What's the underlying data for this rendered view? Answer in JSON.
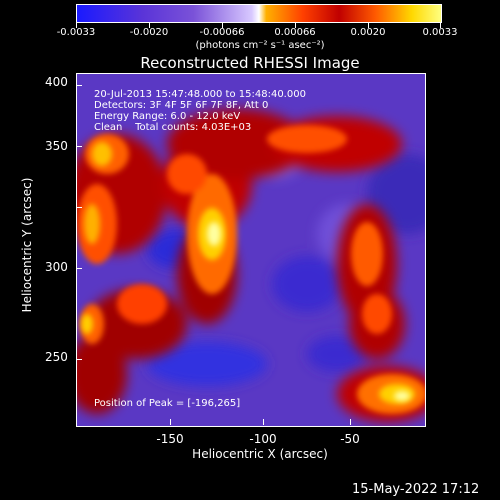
{
  "colorbar": {
    "ticks": [
      "-0.0033",
      "-0.0020",
      "-0.00066",
      "0.00066",
      "0.0020",
      "0.0033"
    ],
    "unit": "(photons cm⁻² s⁻¹ asec⁻²)"
  },
  "title": "Reconstructed RHESSI Image",
  "info": {
    "time": "20-Jul-2013 15:47:48.000 to 15:48:40.000",
    "detectors": "Detectors: 3F 4F 5F 6F 7F 8F, Att 0",
    "energy": "Energy Range: 6.0 - 12.0 keV",
    "clean": "Clean    Total counts: 4.03E+03",
    "peak": "Position of Peak = [-196,265]"
  },
  "axes": {
    "xlabel": "Heliocentric X (arcsec)",
    "ylabel": "Heliocentric Y (arcsec)",
    "xticks": [
      "-150",
      "-100",
      "-50"
    ],
    "yticks": [
      "400",
      "350",
      "300",
      "250"
    ]
  },
  "timestamp": "15-May-2022 17:12",
  "colors": {
    "background": "#000000",
    "foreground": "#ffffff"
  }
}
